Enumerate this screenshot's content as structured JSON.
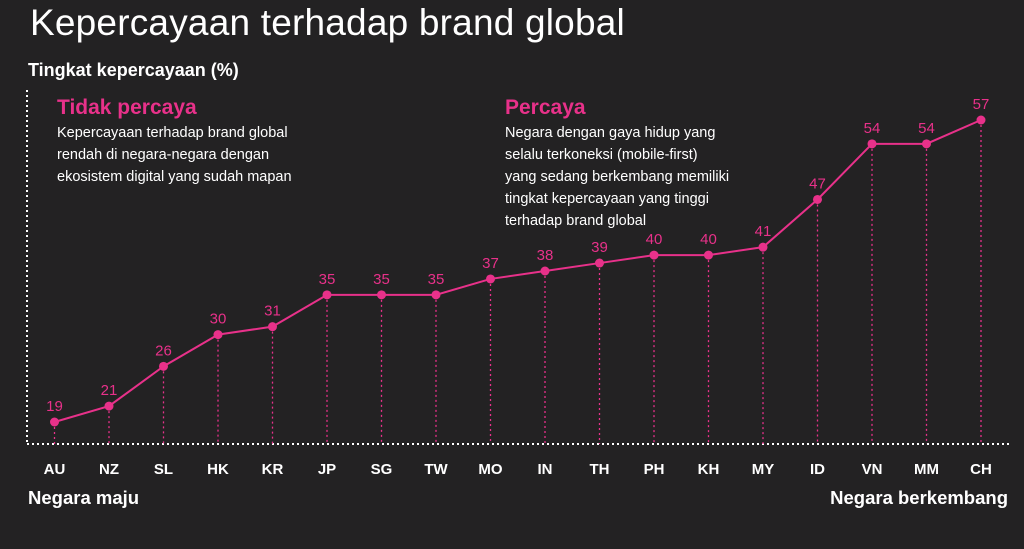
{
  "chart_data": {
    "type": "line",
    "title": "Kepercayaan terhadap brand global",
    "ylabel": "Tingkat kepercayaan (%)",
    "categories": [
      "AU",
      "NZ",
      "SL",
      "HK",
      "KR",
      "JP",
      "SG",
      "TW",
      "MO",
      "IN",
      "TH",
      "PH",
      "KH",
      "MY",
      "ID",
      "VN",
      "MM",
      "CH"
    ],
    "series": [
      {
        "values": [
          19,
          21,
          26,
          30,
          31,
          35,
          35,
          35,
          37,
          38,
          39,
          40,
          40,
          41,
          47,
          54,
          54,
          57
        ]
      }
    ],
    "ylim": [
      15,
      60
    ],
    "grid": false,
    "x_left_label": "Negara maju",
    "x_right_label": "Negara berkembang",
    "annotations": [
      {
        "title": "Tidak percaya",
        "lines": [
          "Kepercayaan terhadap brand global",
          "rendah di negara-negara dengan",
          "ekosistem digital yang sudah mapan"
        ]
      },
      {
        "title": "Percaya",
        "lines": [
          "Negara dengan gaya hidup yang",
          "selalu terkoneksi (mobile-first)",
          "yang sedang berkembang memiliki",
          "tingkat kepercayaan yang tinggi",
          "terhadap brand global"
        ]
      }
    ]
  },
  "colors": {
    "background": "#232223",
    "accent": "#e8318a",
    "text": "#ffffff"
  }
}
